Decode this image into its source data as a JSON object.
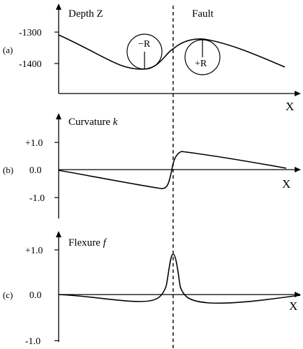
{
  "fault_label": "Fault",
  "panels": [
    {
      "tag": "(a)",
      "ylabel": "Depth Z",
      "yticks": [
        "-1300",
        "-1400"
      ],
      "xlabel": "X",
      "circles": [
        {
          "label": "−R"
        },
        {
          "label": "+R"
        }
      ]
    },
    {
      "tag": "(b)",
      "ylabel": "Curvature k",
      "ylabel_main": "Curvature ",
      "ylabel_var": "k",
      "yticks": [
        "+1.0",
        "0.0",
        "-1.0"
      ],
      "xlabel": "X"
    },
    {
      "tag": "(c)",
      "ylabel_main": "Flexure ",
      "ylabel_var": "f",
      "yticks": [
        "+1.0",
        "0.0",
        "-1.0"
      ],
      "xlabel": "X"
    }
  ],
  "chart_data": [
    {
      "type": "line",
      "title": "",
      "ylabel": "Depth Z",
      "xlabel": "X",
      "x": [
        0.0,
        0.1,
        0.2,
        0.3,
        0.4,
        0.45,
        0.5,
        0.55,
        0.6,
        0.7,
        0.8,
        0.9,
        1.0
      ],
      "series": [
        {
          "values": [
            -1295,
            -1340,
            -1375,
            -1405,
            -1418,
            -1410,
            -1370,
            -1330,
            -1318,
            -1328,
            -1355,
            -1382,
            -1405
          ]
        }
      ],
      "ylim": [
        -1450,
        -1260
      ],
      "annotations": [
        "−R",
        "+R",
        "Fault"
      ]
    },
    {
      "type": "line",
      "title": "",
      "ylabel": "Curvature k",
      "xlabel": "X",
      "x": [
        0.0,
        0.1,
        0.2,
        0.3,
        0.4,
        0.45,
        0.47,
        0.5,
        0.53,
        0.55,
        0.6,
        0.7,
        0.8,
        0.9,
        0.95,
        0.98
      ],
      "series": [
        {
          "values": [
            0.0,
            -0.12,
            -0.25,
            -0.38,
            -0.5,
            -0.6,
            -0.62,
            0.0,
            0.62,
            0.66,
            0.58,
            0.48,
            0.38,
            0.22,
            0.1,
            0.05
          ]
        }
      ],
      "ylim": [
        -1.4,
        1.4
      ]
    },
    {
      "type": "line",
      "title": "",
      "ylabel": "Flexure f",
      "xlabel": "X",
      "x": [
        0.0,
        0.1,
        0.2,
        0.3,
        0.35,
        0.4,
        0.44,
        0.47,
        0.49,
        0.5,
        0.51,
        0.53,
        0.56,
        0.6,
        0.65,
        0.7,
        0.8,
        0.9,
        1.0
      ],
      "series": [
        {
          "values": [
            0.0,
            -0.03,
            -0.08,
            -0.12,
            -0.14,
            -0.1,
            0.0,
            0.4,
            0.8,
            0.85,
            0.8,
            0.4,
            0.0,
            -0.12,
            -0.15,
            -0.13,
            -0.1,
            -0.05,
            0.0
          ]
        }
      ],
      "ylim": [
        -1.15,
        1.15
      ]
    }
  ]
}
